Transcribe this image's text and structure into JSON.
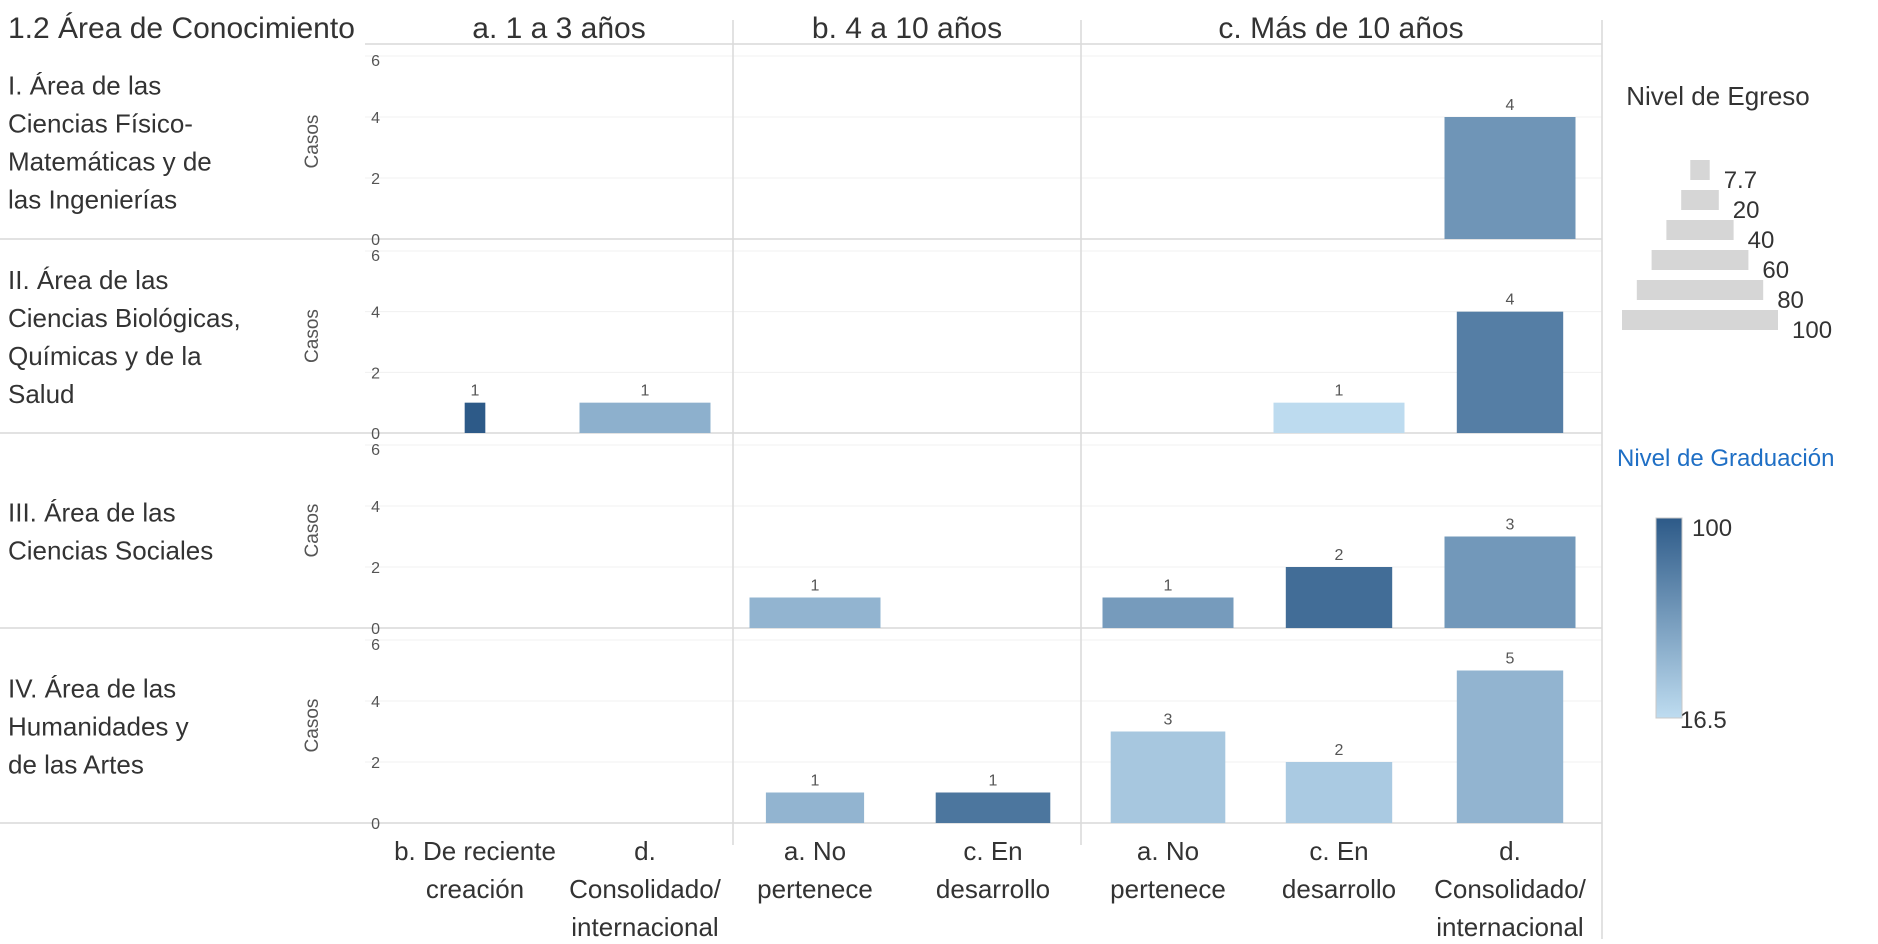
{
  "chart_data": {
    "type": "bar",
    "title": "1.2 Área de Conocimiento",
    "column_groups": [
      "a. 1 a 3 años",
      "b. 4 a 10 años",
      "c. Más de 10 años"
    ],
    "x_categories": [
      [
        "b. De reciente",
        "creación"
      ],
      [
        "d.",
        "Consolidado/",
        "internacional"
      ],
      [
        "a. No",
        "pertenece"
      ],
      [
        "c. En",
        "desarrollo"
      ],
      [
        "a. No",
        "pertenece"
      ],
      [
        "c. En",
        "desarrollo"
      ],
      [
        "d.",
        "Consolidado/",
        "internacional"
      ]
    ],
    "ylabel": "Casos",
    "ylim": [
      0,
      6
    ],
    "y_ticks": [
      0,
      2,
      4,
      6
    ],
    "row_groups": [
      {
        "label": [
          "I. Área de las",
          "Ciencias Físico-",
          "Matemáticas y de",
          "las Ingenierías"
        ],
        "bars": [
          {
            "group": "c. Más de 10 años",
            "category": "d. Consolidado/ internacional",
            "value": 4,
            "egreso": 75,
            "graduacion": 62,
            "label": "4"
          }
        ]
      },
      {
        "label": [
          "II. Área de las",
          "Ciencias Biológicas,",
          "Químicas y de la",
          "Salud"
        ],
        "bars": [
          {
            "group": "a. 1 a 3 años",
            "category": "b. De reciente creación",
            "value": 1,
            "egreso": 7.7,
            "graduacion": 100,
            "label": "1"
          },
          {
            "group": "a. 1 a 3 años",
            "category": "d. Consolidado/ internacional",
            "value": 1,
            "egreso": 75,
            "graduacion": 45,
            "label": "1"
          },
          {
            "group": "c. Más de 10 años",
            "category": "c. En desarrollo",
            "value": 1,
            "egreso": 75,
            "graduacion": 17,
            "label": "1"
          },
          {
            "group": "c. Más de 10 años",
            "category": "d. Consolidado/ internacional",
            "value": 4,
            "egreso": 60,
            "graduacion": 77,
            "label": "4"
          }
        ]
      },
      {
        "label": [
          "III. Área de las",
          "Ciencias Sociales"
        ],
        "bars": [
          {
            "group": "b. 4 a 10 años",
            "category": "a. No pertenece",
            "value": 1,
            "egreso": 75,
            "graduacion": 42,
            "label": "1"
          },
          {
            "group": "c. Más de 10 años",
            "category": "a. No pertenece",
            "value": 1,
            "egreso": 75,
            "graduacion": 58,
            "label": "1"
          },
          {
            "group": "c. Más de 10 años",
            "category": "c. En desarrollo",
            "value": 2,
            "egreso": 60,
            "graduacion": 88,
            "label": "2"
          },
          {
            "group": "c. Más de 10 años",
            "category": "d. Consolidado/ internacional",
            "value": 3,
            "egreso": 75,
            "graduacion": 60,
            "label": "3"
          }
        ]
      },
      {
        "label": [
          "IV. Área de las",
          "Humanidades y",
          "de las Artes"
        ],
        "bars": [
          {
            "group": "b. 4 a 10 años",
            "category": "a. No pertenece",
            "value": 1,
            "egreso": 55,
            "graduacion": 42,
            "label": "1"
          },
          {
            "group": "b. 4 a 10 años",
            "category": "c. En desarrollo",
            "value": 1,
            "egreso": 65,
            "graduacion": 82,
            "label": "1"
          },
          {
            "group": "c. Más de 10 años",
            "category": "a. No pertenece",
            "value": 3,
            "egreso": 65,
            "graduacion": 30,
            "label": "3"
          },
          {
            "group": "c. Más de 10 años",
            "category": "c. En desarrollo",
            "value": 2,
            "egreso": 60,
            "graduacion": 28,
            "label": "2"
          },
          {
            "group": "c. Más de 10 años",
            "category": "d. Consolidado/ internacional",
            "value": 5,
            "egreso": 60,
            "graduacion": 42,
            "label": "5"
          }
        ]
      }
    ],
    "legend_size": {
      "title": "Nivel de Egreso",
      "values": [
        "7.7",
        "20",
        "40",
        "60",
        "80",
        "100"
      ],
      "placement": "right"
    },
    "legend_color": {
      "title": "Nivel de Graduación",
      "min": "16.5",
      "max": "100",
      "color_min": "#bedcf0",
      "color_max": "#2d5a88",
      "placement": "right"
    },
    "colors": {
      "grid": "#d9d9d9",
      "size_legend_bar": "#d6d6d6",
      "color_legend_title": "#1f6fc5"
    }
  }
}
